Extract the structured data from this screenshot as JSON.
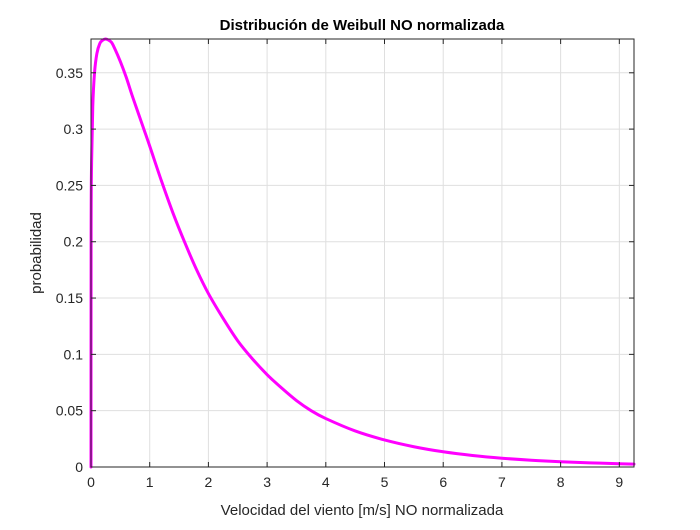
{
  "chart_data": {
    "type": "line",
    "title": "Distribución de Weibull NO normalizada",
    "xlabel": "Velocidad del viento [m/s] NO normalizada",
    "ylabel": "probabilidad",
    "xlim": [
      0,
      9.25
    ],
    "ylim": [
      0,
      0.38
    ],
    "xticks": [
      0,
      1,
      2,
      3,
      4,
      5,
      6,
      7,
      8,
      9
    ],
    "yticks": [
      0,
      0.05,
      0.1,
      0.15,
      0.2,
      0.25,
      0.3,
      0.35
    ],
    "xtick_labels": [
      "0",
      "1",
      "2",
      "3",
      "4",
      "5",
      "6",
      "7",
      "8",
      "9"
    ],
    "ytick_labels": [
      "0",
      "0.05",
      "0.1",
      "0.15",
      "0.2",
      "0.25",
      "0.3",
      "0.35"
    ],
    "grid": true,
    "series": [
      {
        "color": "#ff00ff",
        "x": [
          0,
          0.002,
          0.01,
          0.03,
          0.06,
          0.1,
          0.15,
          0.2,
          0.25,
          0.3,
          0.35,
          0.4,
          0.5,
          0.6,
          0.7,
          0.8,
          0.9,
          1.0,
          1.2,
          1.4,
          1.6,
          1.8,
          2.0,
          2.25,
          2.5,
          2.75,
          3.0,
          3.25,
          3.5,
          3.75,
          4.0,
          4.5,
          5.0,
          5.5,
          6.0,
          6.5,
          7.0,
          7.5,
          8.0,
          8.5,
          9.0,
          9.25
        ],
        "y": [
          0,
          0.21,
          0.27,
          0.32,
          0.35,
          0.367,
          0.376,
          0.379,
          0.38,
          0.379,
          0.377,
          0.372,
          0.36,
          0.346,
          0.33,
          0.315,
          0.3,
          0.285,
          0.254,
          0.225,
          0.199,
          0.175,
          0.154,
          0.132,
          0.112,
          0.096,
          0.082,
          0.07,
          0.059,
          0.05,
          0.043,
          0.032,
          0.024,
          0.018,
          0.0135,
          0.0102,
          0.0078,
          0.006,
          0.0047,
          0.0037,
          0.0029,
          0.0026
        ]
      }
    ]
  }
}
